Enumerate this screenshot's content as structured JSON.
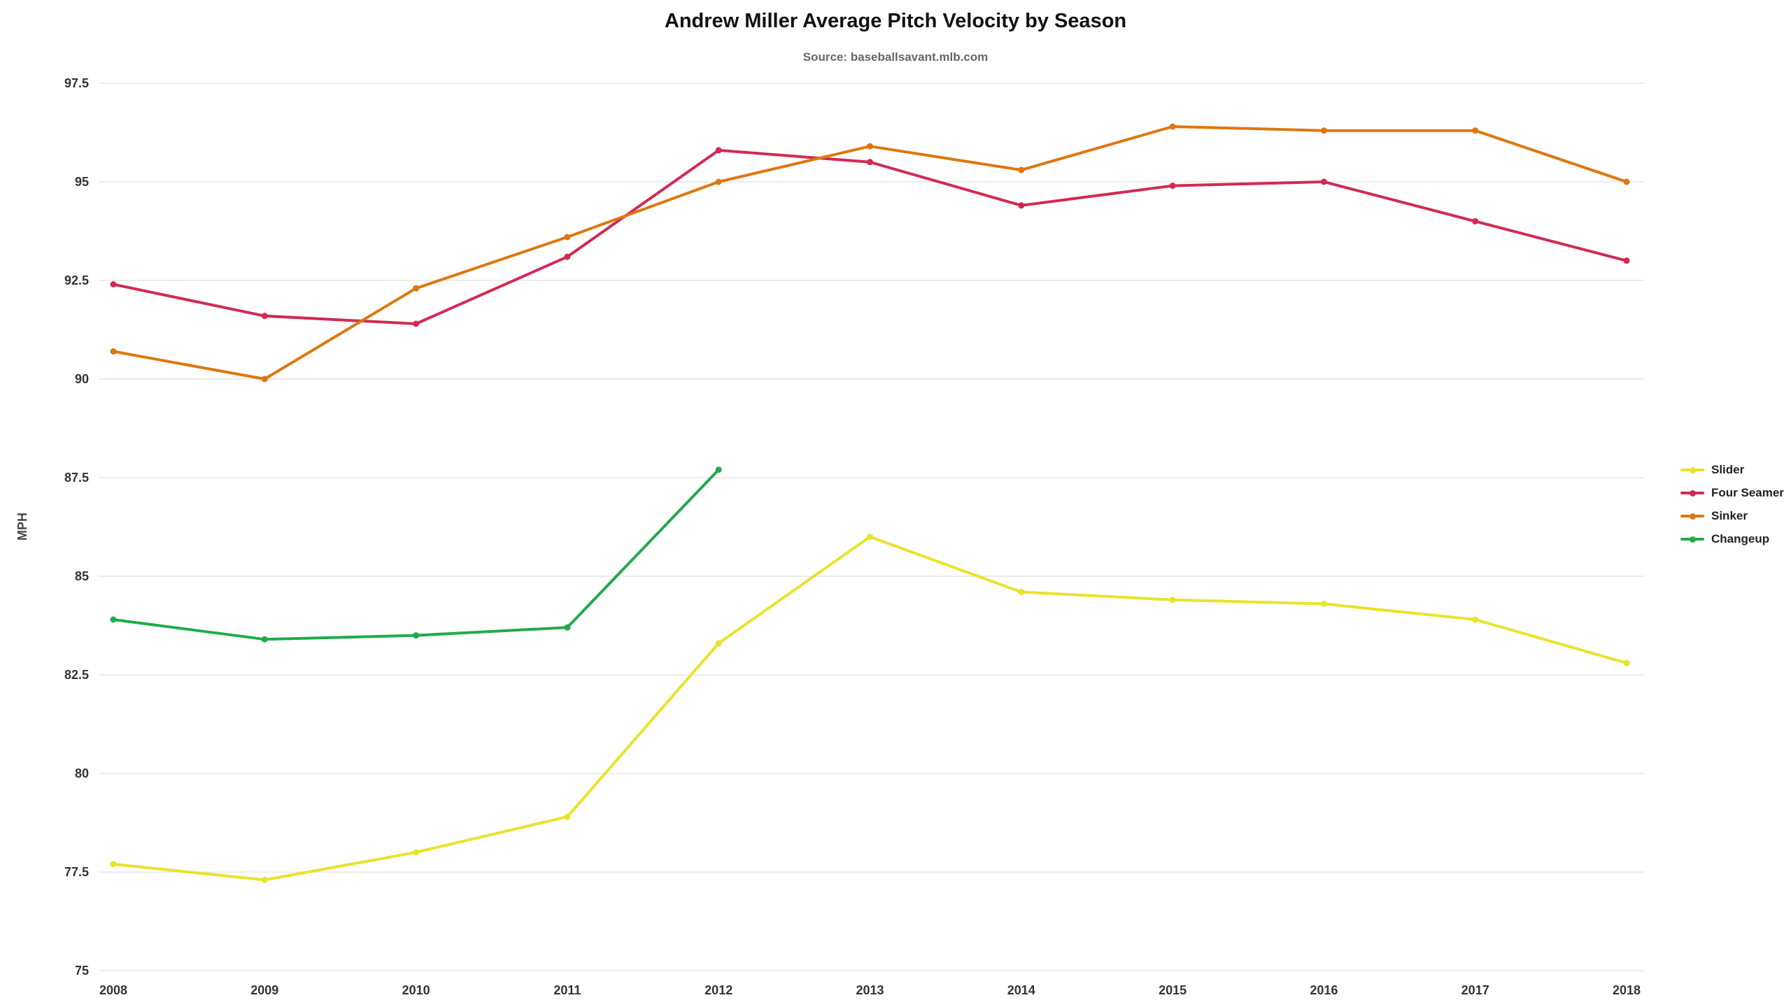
{
  "title": "Andrew Miller Average Pitch Velocity by Season",
  "subtitle": "Source: baseballsavant.mlb.com",
  "chart_data": {
    "type": "line",
    "title": "Andrew Miller Average Pitch Velocity by Season",
    "subtitle": "Source: baseballsavant.mlb.com",
    "xlabel": "",
    "ylabel": "MPH",
    "x": [
      2008,
      2009,
      2010,
      2011,
      2012,
      2013,
      2014,
      2015,
      2016,
      2017,
      2018
    ],
    "ylim": [
      75,
      97.5
    ],
    "ytick_step": 2.5,
    "grid": true,
    "legend_position": "right",
    "grid_color": "#e5e5e5",
    "series": [
      {
        "name": "Slider",
        "color": "#e8e32b",
        "values": [
          77.7,
          77.3,
          78.0,
          78.9,
          83.3,
          86.0,
          84.6,
          84.4,
          84.3,
          83.9,
          82.8
        ]
      },
      {
        "name": "Four Seamer",
        "color": "#d12a55",
        "values": [
          92.4,
          91.6,
          91.4,
          93.1,
          95.8,
          95.5,
          94.4,
          94.9,
          95.0,
          94.0,
          93.0
        ]
      },
      {
        "name": "Sinker",
        "color": "#dd770f",
        "values": [
          90.7,
          90.0,
          92.3,
          93.6,
          95.0,
          95.9,
          95.3,
          96.4,
          96.3,
          96.3,
          95.0
        ]
      },
      {
        "name": "Changeup",
        "color": "#1fab4a",
        "values": [
          83.9,
          83.4,
          83.5,
          83.7,
          87.7,
          null,
          null,
          null,
          null,
          null,
          null
        ]
      }
    ]
  }
}
